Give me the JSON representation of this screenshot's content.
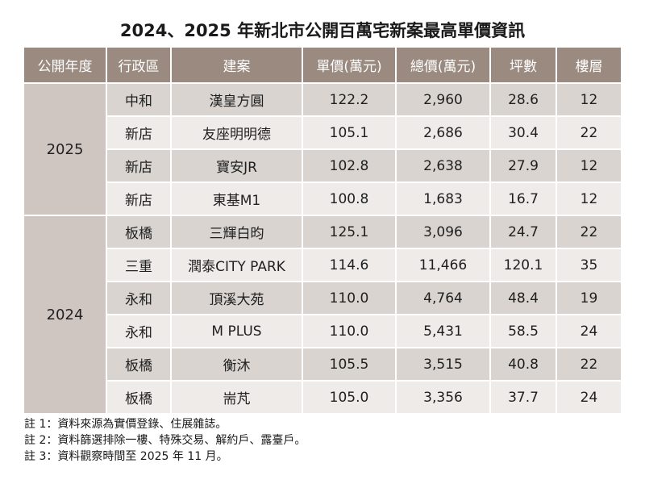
{
  "title": "2024、2025 年新北市公開百萬宅新案最高單價資訊",
  "headers": [
    "公開年度",
    "行政區",
    "建案",
    "單價(萬元)",
    "總價(萬元)",
    "坪數",
    "樓層"
  ],
  "groups": [
    {
      "year": "2025",
      "rows": [
        [
          "中和",
          "漢皇方圓",
          "122.2",
          "2,960",
          "28.6",
          "12"
        ],
        [
          "新店",
          "友座明明德",
          "105.1",
          "2,686",
          "30.4",
          "22"
        ],
        [
          "新店",
          "寶安JR",
          "102.8",
          "2,638",
          "27.9",
          "12"
        ],
        [
          "新店",
          "東基M1",
          "100.8",
          "1,683",
          "16.7",
          "12"
        ]
      ]
    },
    {
      "year": "2024",
      "rows": [
        [
          "板橋",
          "三輝白昀",
          "125.1",
          "3,096",
          "24.7",
          "22"
        ],
        [
          "三重",
          "潤泰CITY PARK",
          "114.6",
          "11,466",
          "120.1",
          "35"
        ],
        [
          "永和",
          "頂溪大苑",
          "110.0",
          "4,764",
          "48.4",
          "19"
        ],
        [
          "永和",
          "M PLUS",
          "110.0",
          "5,431",
          "58.5",
          "24"
        ],
        [
          "板橋",
          "衡沐",
          "105.5",
          "3,515",
          "40.8",
          "22"
        ],
        [
          "板橋",
          "耑芃",
          "105.0",
          "3,356",
          "37.7",
          "24"
        ]
      ]
    }
  ],
  "notes": [
    "註 1：資料來源為實價登錄、住展雜誌。",
    "註 2：資料篩選排除一樓、特殊交易、解約戶、露臺戶。",
    "註 3：資料觀察時間至 2025 年 11 月。"
  ]
}
